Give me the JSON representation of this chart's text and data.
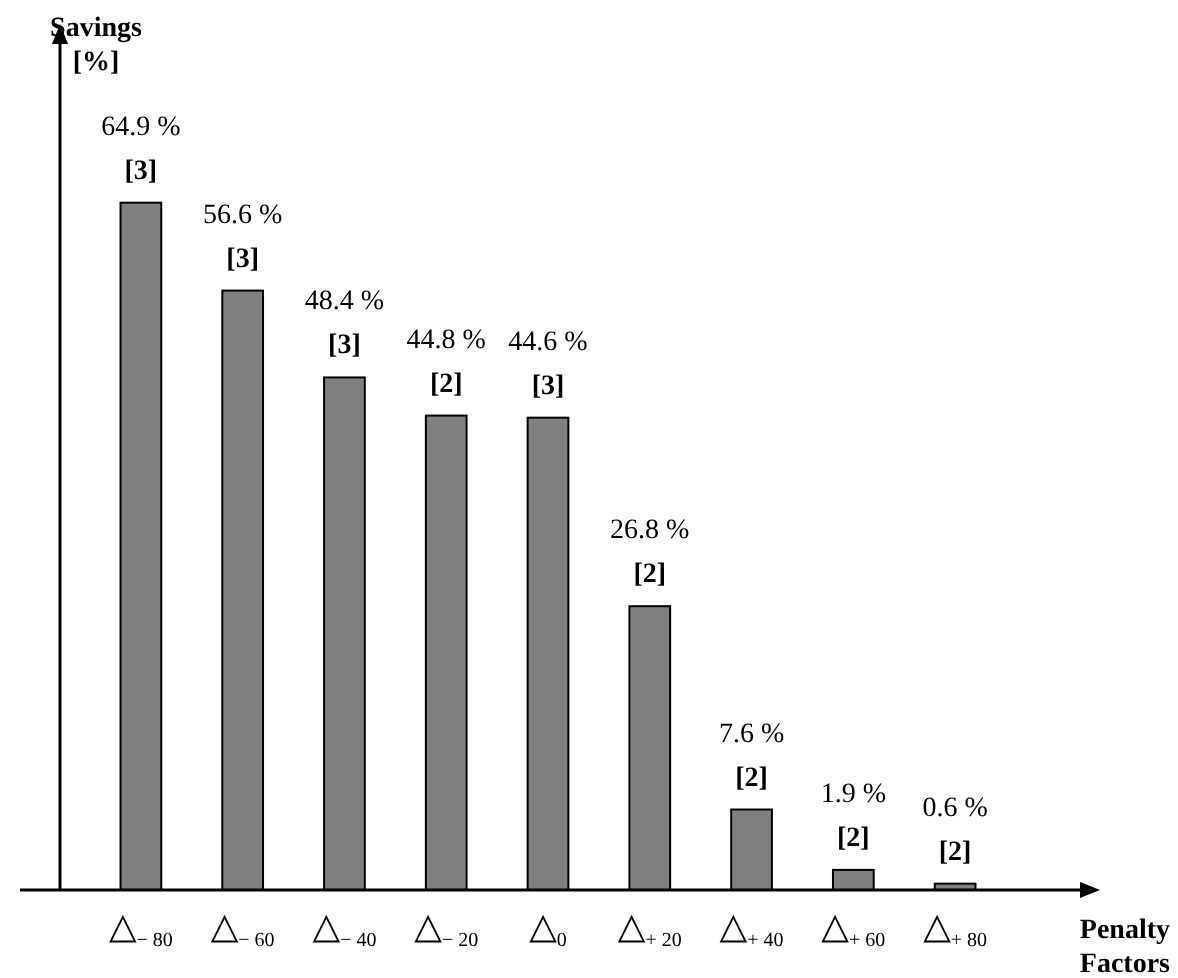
{
  "chart_data": {
    "type": "bar",
    "xlabel": "Penalty Factors",
    "ylabel": "Savings [%]",
    "categories": [
      "△$_{− 80}$",
      "△$_{− 60}$",
      "△$_{− 40}$",
      "△$_{− 20}$",
      "△$_{0}$",
      "△$_{+ 20}$",
      "△$_{+ 40}$",
      "△$_{+ 60}$",
      "△$_{+ 80}$"
    ],
    "values": [
      64.9,
      56.6,
      48.4,
      44.8,
      44.6,
      26.8,
      7.6,
      1.9,
      0.6
    ],
    "value_labels": [
      "64.9 %",
      "56.6 %",
      "48.4 %",
      "44.8 %",
      "44.6 %",
      "26.8 %",
      "7.6 %",
      "1.9 %",
      "0.6 %"
    ],
    "color": "#808080",
    "annotations": [
      {
        "text": "[3]",
        "x": "△$_{− 80}$",
        "y": 64.9
      },
      {
        "text": "[3]",
        "x": "△$_{− 60}$",
        "y": 56.6
      },
      {
        "text": "[3]",
        "x": "△$_{− 40}$",
        "y": 48.4
      },
      {
        "text": "[2]",
        "x": "△$_{− 20}$",
        "y": 44.8
      },
      {
        "text": "[3]",
        "x": "△$_{0}$",
        "y": 44.6
      },
      {
        "text": "[2]",
        "x": "△$_{+ 20}$",
        "y": 26.8
      },
      {
        "text": "[2]",
        "x": "△$_{+ 40}$",
        "y": 7.6
      },
      {
        "text": "[2]",
        "x": "△$_{+ 60}$",
        "y": 1.9
      },
      {
        "text": "[2]",
        "x": "△$_{+ 80}$",
        "y": 0.6
      }
    ]
  }
}
